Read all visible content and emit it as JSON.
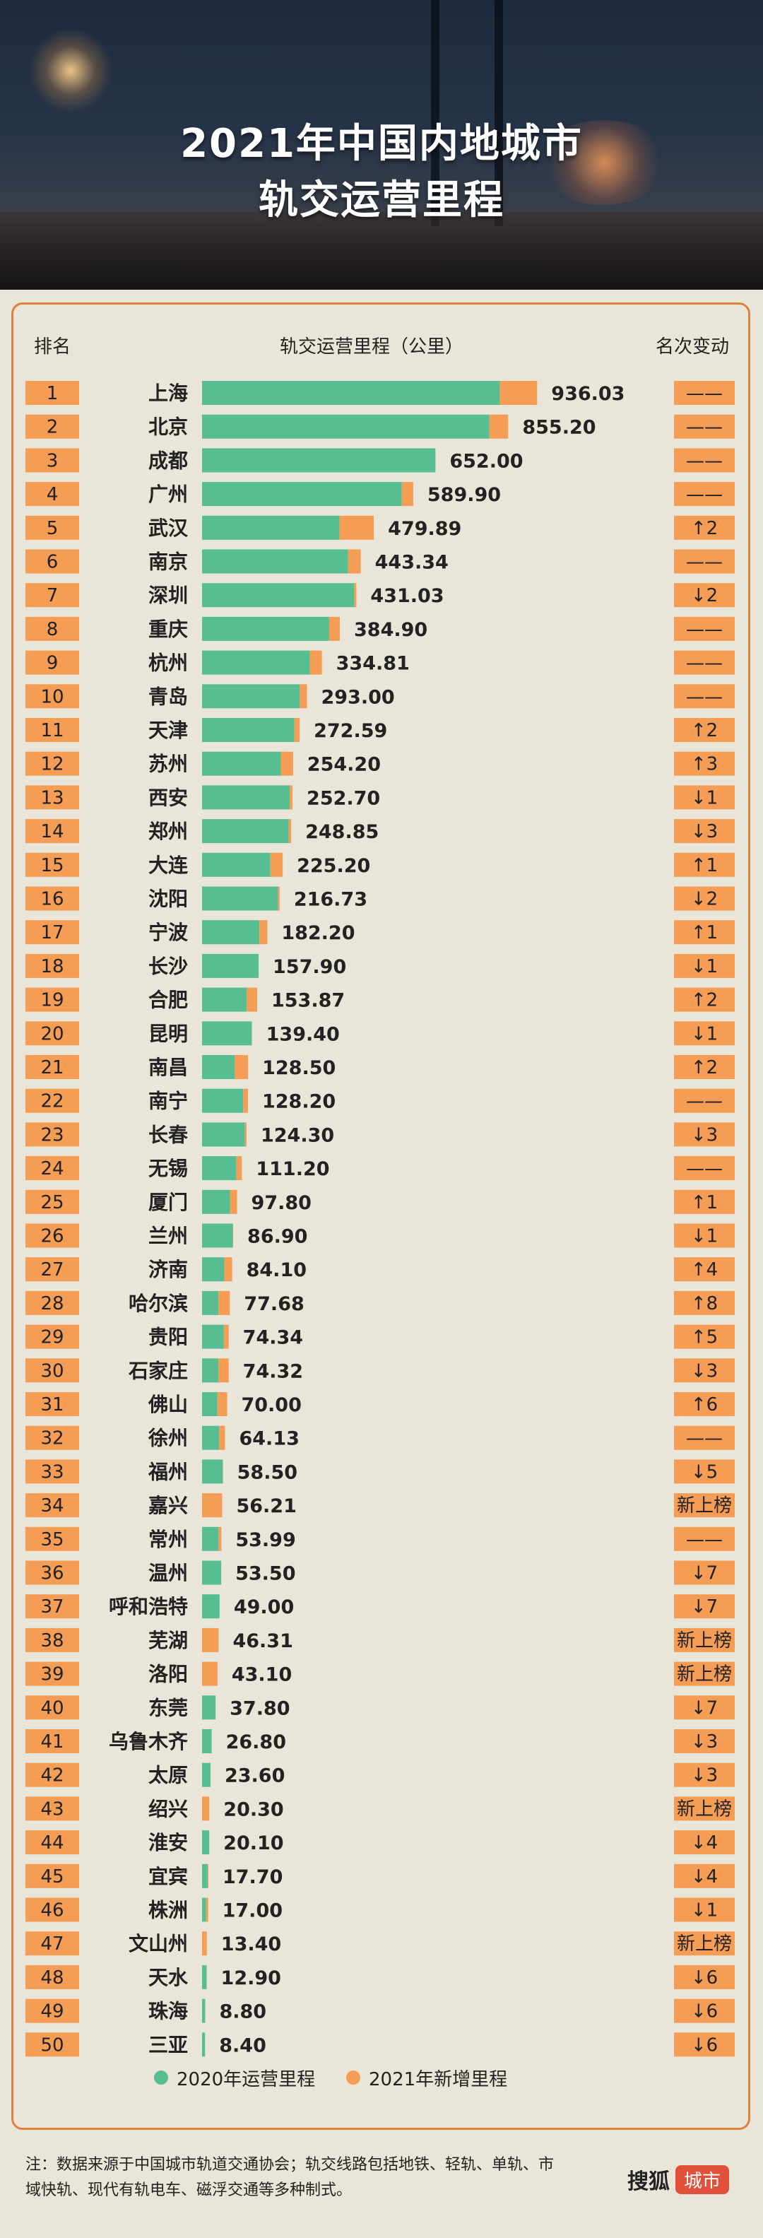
{
  "header": {
    "title_line1": "2021年中国内地城市",
    "title_line2": "轨交运营里程"
  },
  "columns": {
    "rank": "排名",
    "mileage": "轨交运营里程（公里）",
    "change": "名次变动"
  },
  "legend": {
    "base_label": "2020年运营里程",
    "added_label": "2021年新增里程",
    "base_color": "#57be94",
    "added_color": "#f59c55"
  },
  "note": "注：数据来源于中国城市轨道交通协会；轨交线路包括地铁、轻轨、单轨、市域快轨、现代有轨电车、磁浮交通等多种制式。",
  "logo": {
    "brand": "搜狐",
    "tag": "城市"
  },
  "chart_data": {
    "type": "bar",
    "orientation": "horizontal",
    "stacked": true,
    "title": "2021年中国内地城市轨交运营里程",
    "xlabel": "轨交运营里程（公里）",
    "series": [
      {
        "name": "2020年运营里程",
        "color": "#57be94",
        "values": [
          832,
          803,
          652,
          558,
          384,
          408,
          425,
          355,
          301,
          273,
          258,
          220,
          245,
          242,
          191,
          212,
          160,
          158,
          125,
          139,
          91,
          115,
          120,
          96,
          78,
          86,
          62,
          46,
          61,
          46,
          43,
          48,
          58,
          0,
          46,
          53.5,
          49,
          0,
          0,
          37.8,
          26.8,
          23.6,
          0,
          20.1,
          15.5,
          11.5,
          0,
          12.9,
          8.8,
          8.4
        ]
      },
      {
        "name": "2021年新增里程",
        "color": "#f59c55",
        "values": [
          104.03,
          52.2,
          0,
          31.9,
          95.89,
          35.34,
          6.03,
          29.9,
          33.81,
          20,
          14.59,
          34.2,
          7.7,
          6.85,
          34.2,
          4.73,
          22.2,
          0,
          28.87,
          0.4,
          37.5,
          13.2,
          4.3,
          15.2,
          19.8,
          0.9,
          22.1,
          31.68,
          13.34,
          28.32,
          27,
          16.13,
          0.5,
          56.21,
          7.99,
          0,
          0,
          46.31,
          43.1,
          0,
          0,
          0,
          20.3,
          0,
          2.2,
          5.5,
          13.4,
          0,
          0,
          0
        ]
      }
    ],
    "rows": [
      {
        "rank": "1",
        "city": "上海",
        "total": "936.03",
        "change": "——"
      },
      {
        "rank": "2",
        "city": "北京",
        "total": "855.20",
        "change": "——"
      },
      {
        "rank": "3",
        "city": "成都",
        "total": "652.00",
        "change": "——"
      },
      {
        "rank": "4",
        "city": "广州",
        "total": "589.90",
        "change": "——"
      },
      {
        "rank": "5",
        "city": "武汉",
        "total": "479.89",
        "change": "↑2"
      },
      {
        "rank": "6",
        "city": "南京",
        "total": "443.34",
        "change": "——"
      },
      {
        "rank": "7",
        "city": "深圳",
        "total": "431.03",
        "change": "↓2"
      },
      {
        "rank": "8",
        "city": "重庆",
        "total": "384.90",
        "change": "——"
      },
      {
        "rank": "9",
        "city": "杭州",
        "total": "334.81",
        "change": "——"
      },
      {
        "rank": "10",
        "city": "青岛",
        "total": "293.00",
        "change": "——"
      },
      {
        "rank": "11",
        "city": "天津",
        "total": "272.59",
        "change": "↑2"
      },
      {
        "rank": "12",
        "city": "苏州",
        "total": "254.20",
        "change": "↑3"
      },
      {
        "rank": "13",
        "city": "西安",
        "total": "252.70",
        "change": "↓1"
      },
      {
        "rank": "14",
        "city": "郑州",
        "total": "248.85",
        "change": "↓3"
      },
      {
        "rank": "15",
        "city": "大连",
        "total": "225.20",
        "change": "↑1"
      },
      {
        "rank": "16",
        "city": "沈阳",
        "total": "216.73",
        "change": "↓2"
      },
      {
        "rank": "17",
        "city": "宁波",
        "total": "182.20",
        "change": "↑1"
      },
      {
        "rank": "18",
        "city": "长沙",
        "total": "157.90",
        "change": "↓1"
      },
      {
        "rank": "19",
        "city": "合肥",
        "total": "153.87",
        "change": "↑2"
      },
      {
        "rank": "20",
        "city": "昆明",
        "total": "139.40",
        "change": "↓1"
      },
      {
        "rank": "21",
        "city": "南昌",
        "total": "128.50",
        "change": "↑2"
      },
      {
        "rank": "22",
        "city": "南宁",
        "total": "128.20",
        "change": "——"
      },
      {
        "rank": "23",
        "city": "长春",
        "total": "124.30",
        "change": "↓3"
      },
      {
        "rank": "24",
        "city": "无锡",
        "total": "111.20",
        "change": "——"
      },
      {
        "rank": "25",
        "city": "厦门",
        "total": "97.80",
        "change": "↑1"
      },
      {
        "rank": "26",
        "city": "兰州",
        "total": "86.90",
        "change": "↓1"
      },
      {
        "rank": "27",
        "city": "济南",
        "total": "84.10",
        "change": "↑4"
      },
      {
        "rank": "28",
        "city": "哈尔滨",
        "total": "77.68",
        "change": "↑8"
      },
      {
        "rank": "29",
        "city": "贵阳",
        "total": "74.34",
        "change": "↑5"
      },
      {
        "rank": "30",
        "city": "石家庄",
        "total": "74.32",
        "change": "↓3"
      },
      {
        "rank": "31",
        "city": "佛山",
        "total": "70.00",
        "change": "↑6"
      },
      {
        "rank": "32",
        "city": "徐州",
        "total": "64.13",
        "change": "——"
      },
      {
        "rank": "33",
        "city": "福州",
        "total": "58.50",
        "change": "↓5"
      },
      {
        "rank": "34",
        "city": "嘉兴",
        "total": "56.21",
        "change": "新上榜"
      },
      {
        "rank": "35",
        "city": "常州",
        "total": "53.99",
        "change": "——"
      },
      {
        "rank": "36",
        "city": "温州",
        "total": "53.50",
        "change": "↓7"
      },
      {
        "rank": "37",
        "city": "呼和浩特",
        "total": "49.00",
        "change": "↓7"
      },
      {
        "rank": "38",
        "city": "芜湖",
        "total": "46.31",
        "change": "新上榜"
      },
      {
        "rank": "39",
        "city": "洛阳",
        "total": "43.10",
        "change": "新上榜"
      },
      {
        "rank": "40",
        "city": "东莞",
        "total": "37.80",
        "change": "↓7"
      },
      {
        "rank": "41",
        "city": "乌鲁木齐",
        "total": "26.80",
        "change": "↓3"
      },
      {
        "rank": "42",
        "city": "太原",
        "total": "23.60",
        "change": "↓3"
      },
      {
        "rank": "43",
        "city": "绍兴",
        "total": "20.30",
        "change": "新上榜"
      },
      {
        "rank": "44",
        "city": "淮安",
        "total": "20.10",
        "change": "↓4"
      },
      {
        "rank": "45",
        "city": "宜宾",
        "total": "17.70",
        "change": "↓4"
      },
      {
        "rank": "46",
        "city": "株洲",
        "total": "17.00",
        "change": "↓1"
      },
      {
        "rank": "47",
        "city": "文山州",
        "total": "13.40",
        "change": "新上榜"
      },
      {
        "rank": "48",
        "city": "天水",
        "total": "12.90",
        "change": "↓6"
      },
      {
        "rank": "49",
        "city": "珠海",
        "total": "8.80",
        "change": "↓6"
      },
      {
        "rank": "50",
        "city": "三亚",
        "total": "8.40",
        "change": "↓6"
      }
    ]
  }
}
